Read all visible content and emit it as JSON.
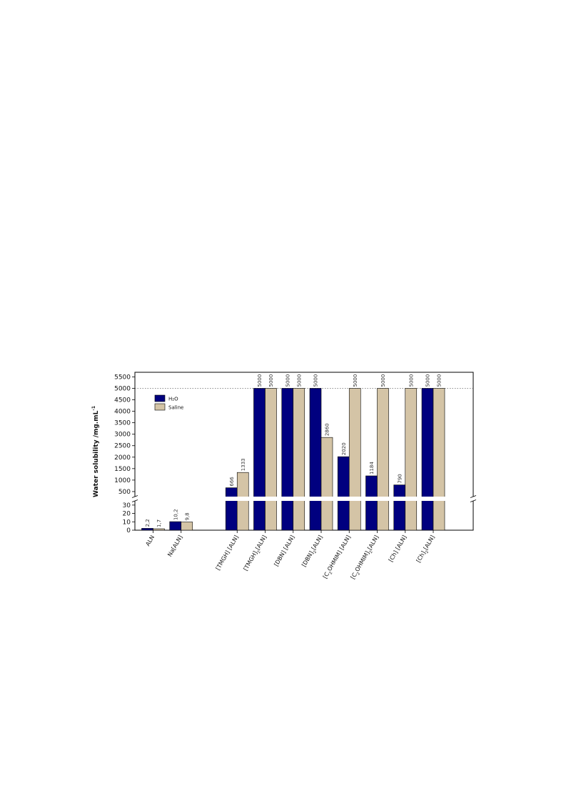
{
  "chart_data": {
    "type": "bar",
    "ylabel": "Water solubility /mg.mL",
    "ylabel_sup": "-1",
    "categories": [
      {
        "parts": [
          [
            "ALN",
            ""
          ]
        ]
      },
      {
        "parts": [
          [
            "Na[ALN]",
            ""
          ]
        ]
      },
      {
        "parts": [
          [
            "[TMGH] [ALN]",
            ""
          ]
        ]
      },
      {
        "parts": [
          [
            "[TMGH]",
            ""
          ],
          [
            "2",
            "sub"
          ],
          [
            "[ALN]",
            ""
          ]
        ]
      },
      {
        "parts": [
          [
            "[DBN] [ALN]",
            ""
          ]
        ]
      },
      {
        "parts": [
          [
            "[DBN]",
            ""
          ],
          [
            "2",
            "sub"
          ],
          [
            "[ALN]",
            ""
          ]
        ]
      },
      {
        "parts": [
          [
            "[C",
            ""
          ],
          [
            "2",
            "sub"
          ],
          [
            "OHMIM] [ALN]",
            ""
          ]
        ]
      },
      {
        "parts": [
          [
            "[C",
            ""
          ],
          [
            "2",
            "sub"
          ],
          [
            "OHMIM]",
            ""
          ],
          [
            "2",
            "sub"
          ],
          [
            "[ALN]",
            ""
          ]
        ]
      },
      {
        "parts": [
          [
            "[Ch] [ALN]",
            ""
          ]
        ]
      },
      {
        "parts": [
          [
            "[Ch]",
            ""
          ],
          [
            "2",
            "sub"
          ],
          [
            "[ALN]",
            ""
          ]
        ]
      }
    ],
    "category_slots": [
      0,
      1,
      3,
      4,
      5,
      6,
      7,
      8,
      9,
      10
    ],
    "series": [
      {
        "name": "H₂O",
        "color": "#00007f",
        "values": [
          2.2,
          10.2,
          666,
          5000,
          5000,
          5000,
          2020,
          1184,
          790,
          5000
        ],
        "labels": [
          "2,2",
          "10,2",
          "666",
          "5000",
          "5000",
          "5000",
          "2020",
          "1184",
          "790",
          "5000"
        ]
      },
      {
        "name": "Saline",
        "color": "#d4c4a6",
        "values": [
          1.7,
          9.8,
          1333,
          5000,
          5000,
          2860,
          5000,
          5000,
          5000,
          5000
        ],
        "labels": [
          "1,7",
          "9,8",
          "1333",
          "5000",
          "5000",
          "2860",
          "5000",
          "5000",
          "5000",
          "5000"
        ]
      }
    ],
    "lower_axis": {
      "ylim": [
        0,
        35
      ],
      "ticks": [
        "0",
        "10",
        "20",
        "30"
      ],
      "tick_values": [
        0,
        10,
        20,
        30
      ]
    },
    "upper_axis": {
      "ylim": [
        280,
        5700
      ],
      "ticks": [
        "500",
        "1000",
        "1500",
        "2000",
        "2500",
        "3000",
        "3500",
        "4000",
        "4500",
        "5000",
        "5500"
      ],
      "tick_values": [
        500,
        1000,
        1500,
        2000,
        2500,
        3000,
        3500,
        4000,
        4500,
        5000,
        5500
      ]
    },
    "axis_break": true,
    "reference_line": 5000,
    "legend_position": "top-left",
    "grid": false
  }
}
